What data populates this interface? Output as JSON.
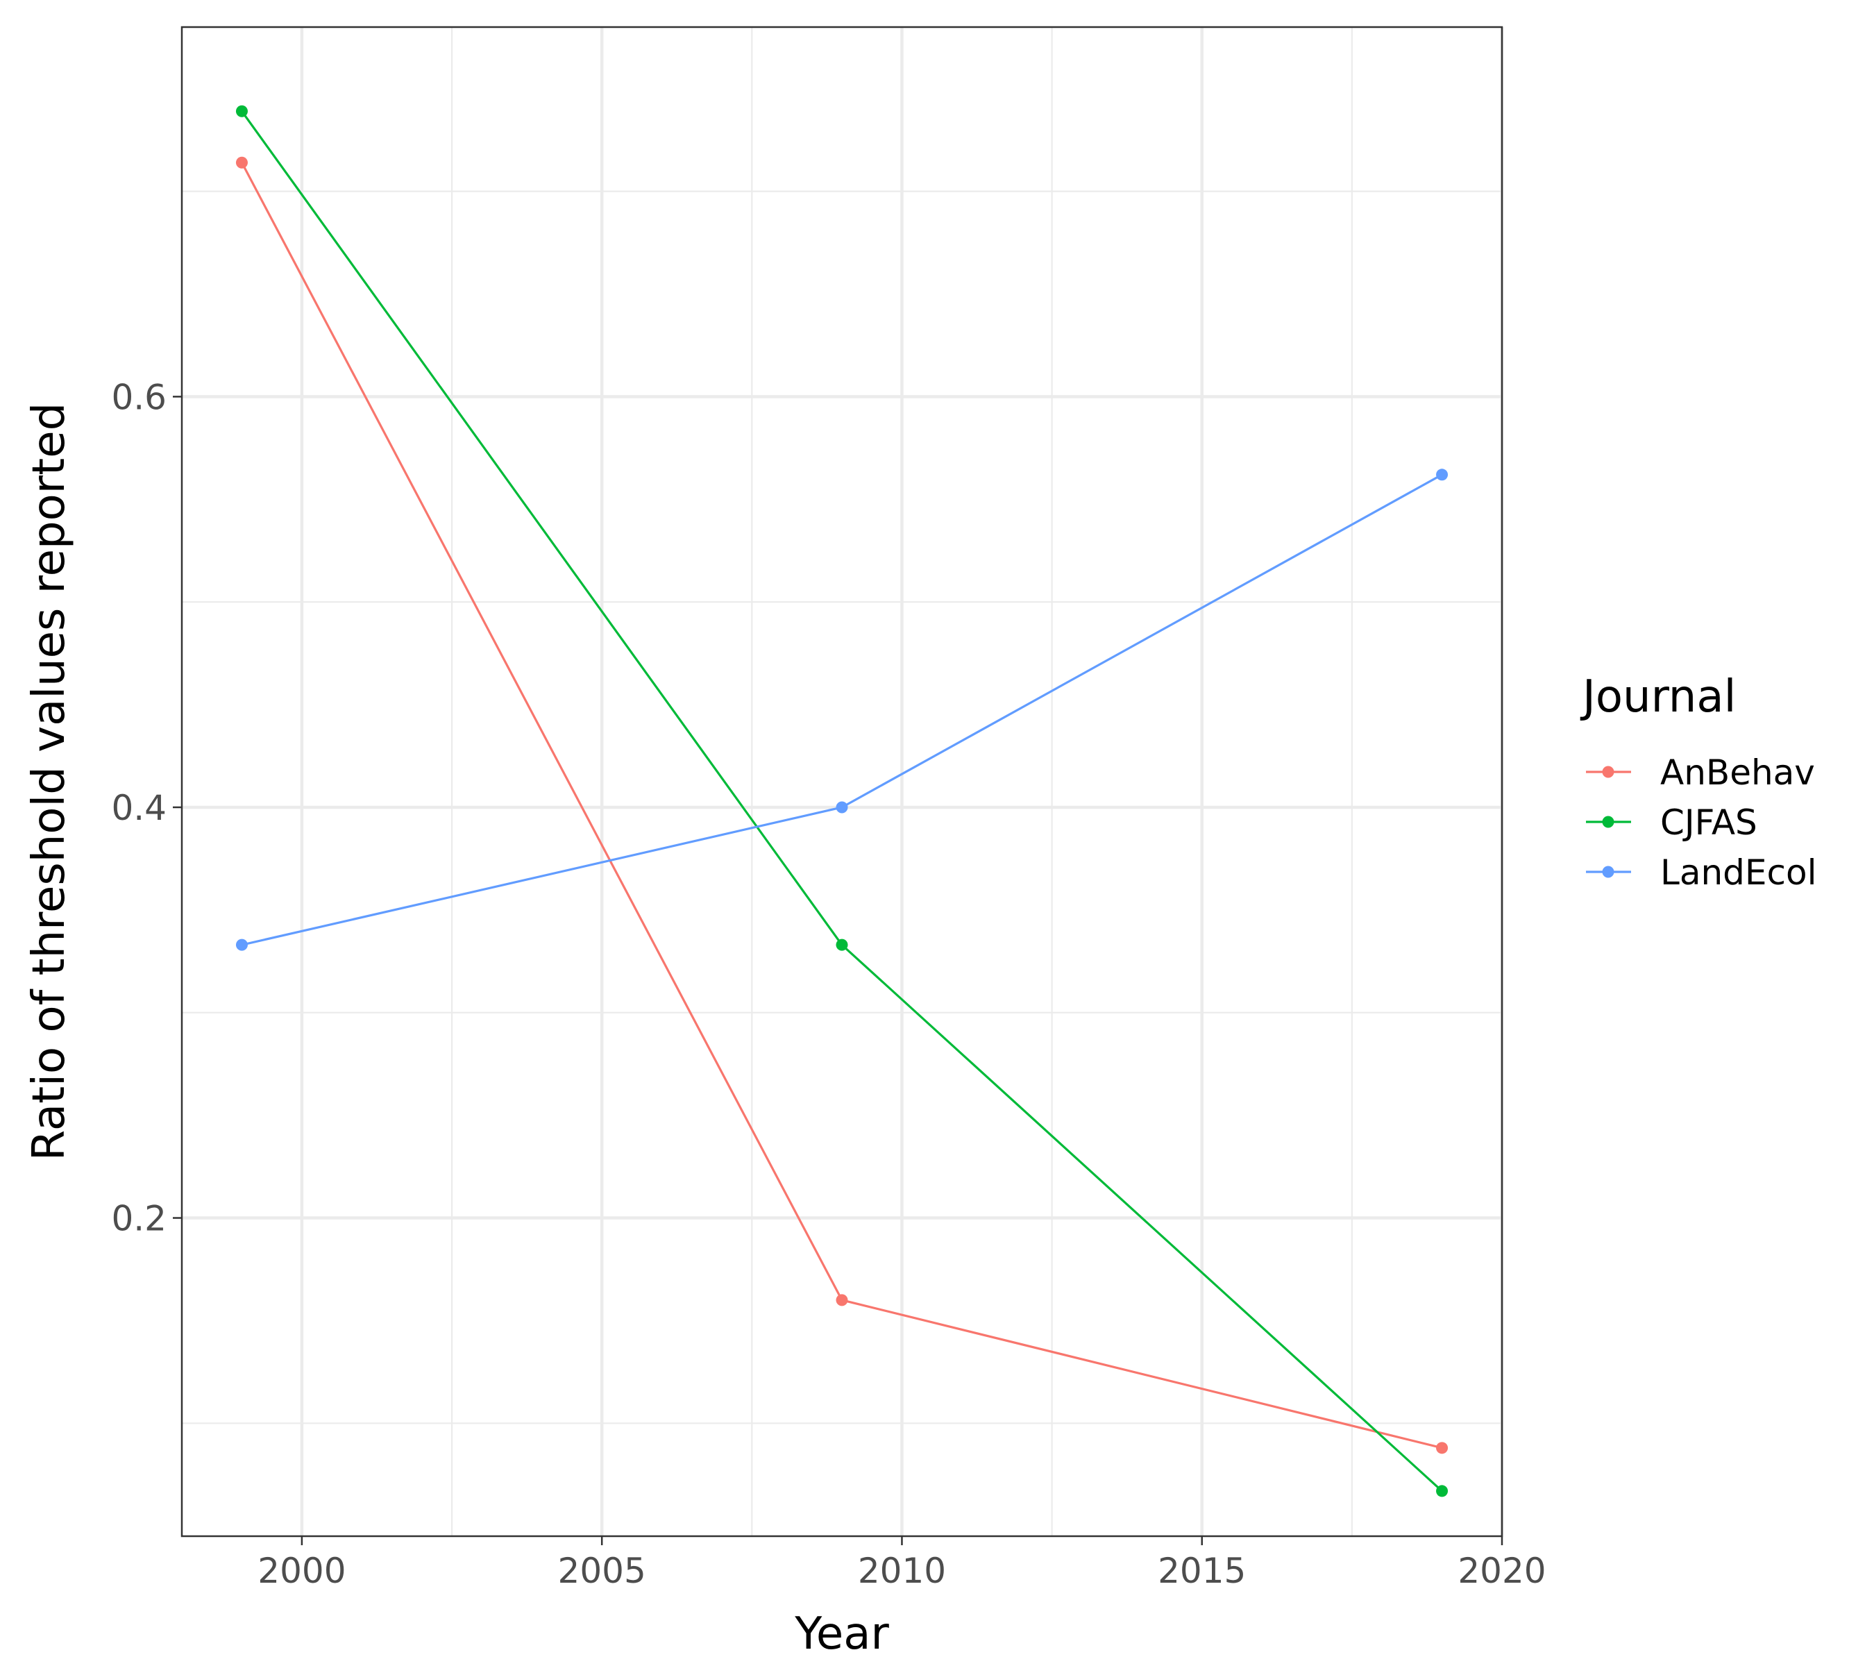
{
  "chart_data": {
    "type": "line",
    "title": "",
    "xlabel": "Year",
    "ylabel": "Ratio of threshold values reported",
    "xlim": [
      1998,
      2020
    ],
    "ylim": [
      0.045,
      0.78
    ],
    "x_ticks": [
      2000,
      2005,
      2010,
      2015,
      2020
    ],
    "x_tick_labels": [
      "2000",
      "2005",
      "2010",
      "2015",
      "2020"
    ],
    "x_minor_ticks": [
      2002.5,
      2007.5,
      2012.5,
      2017.5
    ],
    "y_ticks": [
      0.2,
      0.4,
      0.6
    ],
    "y_tick_labels": [
      "0.2",
      "0.4",
      "0.6"
    ],
    "y_minor_ticks": [
      0.1,
      0.3,
      0.5,
      0.7
    ],
    "grid": true,
    "legend": {
      "title": "Journal",
      "position": "right"
    },
    "x": [
      1999,
      2009,
      2019
    ],
    "series": [
      {
        "name": "AnBehav",
        "color": "#F8766D",
        "values": [
          0.714,
          0.16,
          0.088
        ]
      },
      {
        "name": "CJFAS",
        "color": "#00BA38",
        "values": [
          0.739,
          0.333,
          0.067
        ]
      },
      {
        "name": "LandEcol",
        "color": "#619CFF",
        "values": [
          0.333,
          0.4,
          0.562
        ]
      }
    ]
  }
}
